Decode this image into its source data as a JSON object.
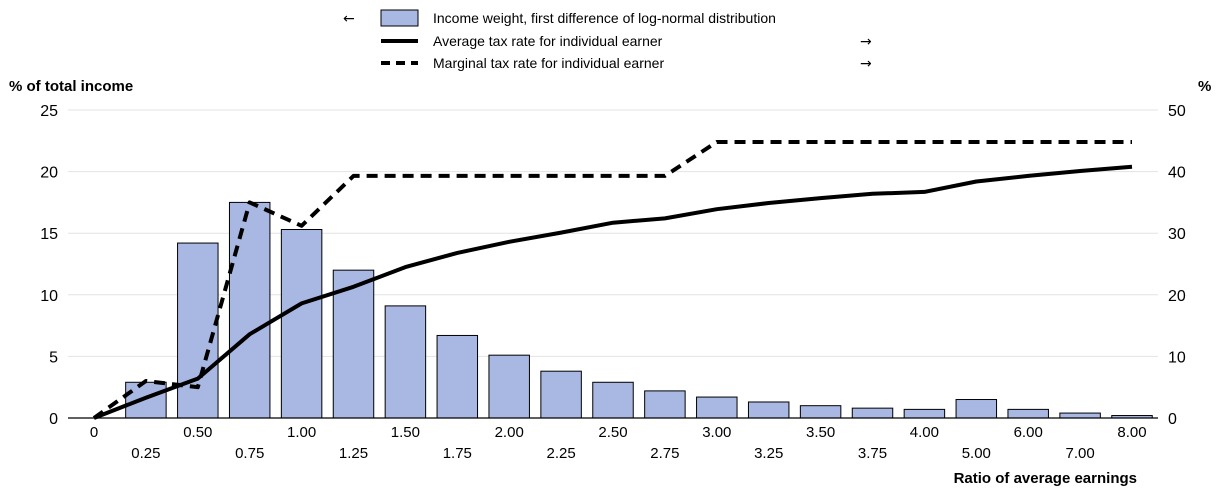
{
  "chart_data": {
    "type": "bar",
    "categories": [
      "0",
      "0.25",
      "0.50",
      "0.75",
      "1.00",
      "1.25",
      "1.50",
      "1.75",
      "2.00",
      "2.25",
      "2.50",
      "2.75",
      "3.00",
      "3.25",
      "3.50",
      "3.75",
      "4.00",
      "5.00",
      "6.00",
      "7.00",
      "8.00"
    ],
    "series": [
      {
        "name": "Income weight, first difference of log-normal distribution",
        "type": "bar",
        "axis": "left",
        "arrow": "←",
        "values": [
          null,
          2.9,
          14.2,
          17.5,
          15.3,
          12.0,
          9.1,
          6.7,
          5.1,
          3.8,
          2.9,
          2.2,
          1.7,
          1.3,
          1.0,
          0.8,
          0.7,
          1.5,
          0.7,
          0.4,
          0.2
        ]
      },
      {
        "name": "Average tax rate for individual earner",
        "type": "line",
        "axis": "right",
        "arrow": "→",
        "values": [
          0,
          3.3,
          6.4,
          13.6,
          18.6,
          21.3,
          24.5,
          26.8,
          28.6,
          30.1,
          31.7,
          32.4,
          33.9,
          34.9,
          35.7,
          36.4,
          36.7,
          38.4,
          39.3,
          40.1,
          40.8
        ]
      },
      {
        "name": "Marginal tax rate for individual earner",
        "type": "dashed-line",
        "axis": "right",
        "arrow": "→",
        "values": [
          0,
          6.0,
          5.0,
          35.0,
          31.2,
          39.3,
          39.3,
          39.3,
          39.3,
          39.3,
          39.3,
          39.3,
          44.8,
          44.8,
          44.8,
          44.8,
          44.8,
          44.8,
          44.8,
          44.8,
          44.8
        ]
      }
    ],
    "ylabel_left": "% of total income",
    "ylabel_right": "%",
    "xlabel": "Ratio of average earnings",
    "ylim_left": [
      0,
      25
    ],
    "ylim_right": [
      0,
      50
    ],
    "yticks_left": [
      "0",
      "5",
      "10",
      "15",
      "20",
      "25"
    ],
    "yticks_right": [
      "0",
      "10",
      "20",
      "30",
      "40",
      "50"
    ],
    "grid": true,
    "legend_position": "top-center"
  }
}
